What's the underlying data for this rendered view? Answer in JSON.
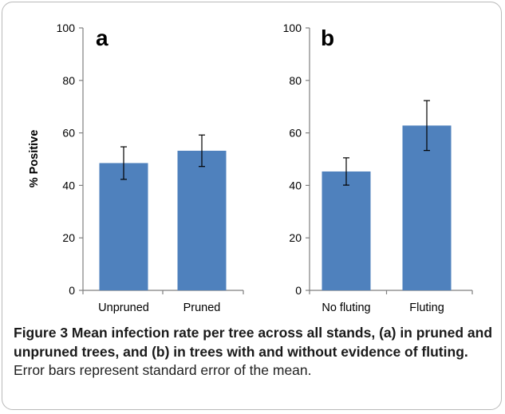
{
  "chart_data": [
    {
      "type": "bar",
      "panel_label": "a",
      "categories": [
        "Unpruned",
        "Pruned"
      ],
      "values": [
        48.5,
        53.2
      ],
      "error": [
        6.2,
        6.0
      ],
      "ylabel": "% Positive",
      "ylim": [
        0,
        100
      ],
      "yticks": [
        0,
        20,
        40,
        60,
        80,
        100
      ],
      "grid": false,
      "bar_color": "#4f81bd"
    },
    {
      "type": "bar",
      "panel_label": "b",
      "categories": [
        "No fluting",
        "Fluting"
      ],
      "values": [
        45.3,
        62.8
      ],
      "error": [
        5.2,
        9.5
      ],
      "ylabel": "",
      "ylim": [
        0,
        100
      ],
      "yticks": [
        0,
        20,
        40,
        60,
        80,
        100
      ],
      "grid": false,
      "bar_color": "#4f81bd"
    }
  ],
  "caption": {
    "title": "Figure 3 Mean infection rate per tree across all stands, (a) in pruned and unpruned trees, and (b) in trees with and without evidence of fluting.",
    "text": " Error bars represent standard error of the mean."
  }
}
